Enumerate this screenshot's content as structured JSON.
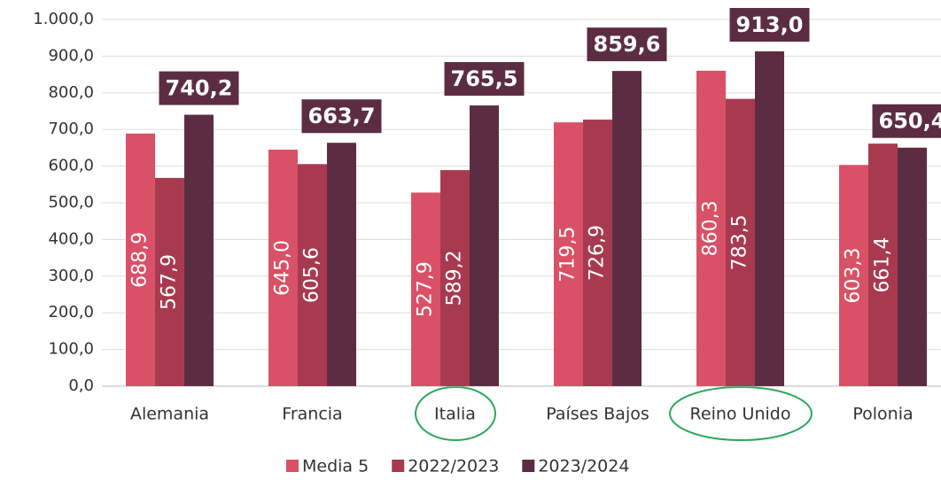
{
  "chart_data": {
    "type": "bar",
    "categories": [
      "Alemania",
      "Francia",
      "Italia",
      "Países Bajos",
      "Reino Unido",
      "Polonia"
    ],
    "series": [
      {
        "name": "Media 5",
        "color": "#d95166",
        "values": [
          688.9,
          645.0,
          527.9,
          719.5,
          860.3,
          603.3
        ],
        "value_labels": [
          "688,9",
          "645,0",
          "527,9",
          "719,5",
          "860,3",
          "603,3"
        ]
      },
      {
        "name": "2022/2023",
        "color": "#a83a50",
        "values": [
          567.9,
          605.6,
          589.2,
          726.9,
          783.5,
          661.4
        ],
        "value_labels": [
          "567,9",
          "605,6",
          "589,2",
          "726,9",
          "783,5",
          "661,4"
        ]
      },
      {
        "name": "2023/2024",
        "color": "#5c2d42",
        "values": [
          740.2,
          663.7,
          765.5,
          859.6,
          913.0,
          650.4
        ],
        "value_labels": [
          "740,2",
          "663,7",
          "765,5",
          "859,6",
          "913,0",
          "650,4"
        ]
      }
    ],
    "ylim": [
      0,
      1000
    ],
    "yticks": [
      {
        "value": 0,
        "label": "0,0"
      },
      {
        "value": 100,
        "label": "100,0"
      },
      {
        "value": 200,
        "label": "200,0"
      },
      {
        "value": 300,
        "label": "300,0"
      },
      {
        "value": 400,
        "label": "400,0"
      },
      {
        "value": 500,
        "label": "500,0"
      },
      {
        "value": 600,
        "label": "600,0"
      },
      {
        "value": 700,
        "label": "700,0"
      },
      {
        "value": 800,
        "label": "800,0"
      },
      {
        "value": 900,
        "label": "900,0"
      },
      {
        "value": 1000,
        "label": "1.000,0"
      }
    ],
    "grid": true,
    "legend": "bottom"
  }
}
